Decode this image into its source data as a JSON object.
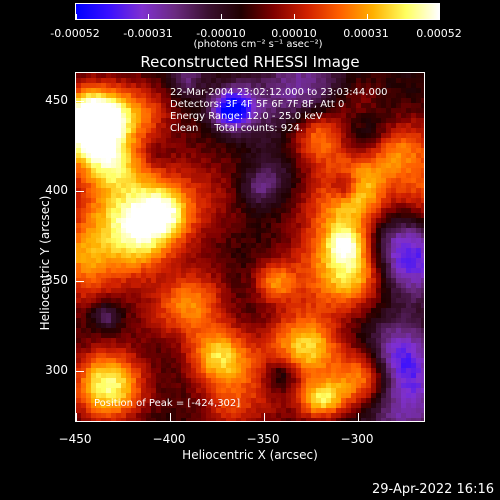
{
  "colorbar": {
    "tick_labels": [
      "-0.00052",
      "-0.00031",
      "-0.00010",
      "0.00010",
      "0.00031",
      "0.00052"
    ],
    "unit": "(photons cm⁻² s⁻¹ asec⁻²)",
    "range": [
      -0.00052,
      0.00052
    ],
    "colors": [
      "#0000ff",
      "#3a10ff",
      "#8030d0",
      "#6a2a80",
      "#3a1030",
      "#200000",
      "#800000",
      "#d02000",
      "#ff6000",
      "#ffb000",
      "#ffff60",
      "#ffffff"
    ]
  },
  "plot": {
    "title": "Reconstructed RHESSI Image",
    "info_lines": [
      "22-Mar-2004 23:02:12.000 to 23:03:44.000",
      "Detectors: 3F 4F 5F 6F 7F 8F, Att 0",
      "Energy Range: 12.0 - 25.0 keV",
      "Clean     Total counts: 924."
    ],
    "peak_text": "Position of Peak = [-424,302]",
    "xlabel": "Heliocentric X (arcsec)",
    "ylabel": "Heliocentric Y (arcsec)",
    "x_ticks": [
      "−450",
      "−400",
      "−350",
      "−300"
    ],
    "y_ticks": [
      "450",
      "400",
      "350",
      "300"
    ],
    "x_range": [
      -452,
      -266
    ],
    "y_range": [
      272,
      466
    ]
  },
  "footer": {
    "timestamp": "29-Apr-2022 16:16"
  }
}
